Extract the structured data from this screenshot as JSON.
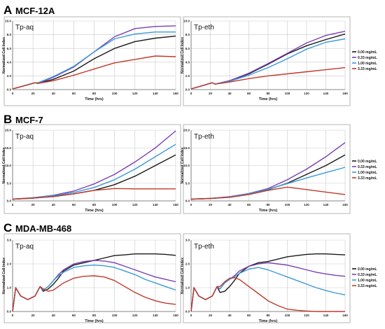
{
  "panels": [
    {
      "letter": "A",
      "cell_line": "MCF-12A"
    },
    {
      "letter": "B",
      "cell_line": "MCF-7"
    },
    {
      "letter": "C",
      "cell_line": "MDA-MB-468"
    }
  ],
  "legend": {
    "entries": [
      {
        "label": "0.00 mg/mL",
        "color": "#1a1a1a"
      },
      {
        "label": "0.33 mg/mL",
        "color": "#7b3fb3"
      },
      {
        "label": "1.00 mg/mL",
        "color": "#3a9ad9"
      },
      {
        "label": "3.33 mg/mL",
        "color": "#c0392b"
      }
    ]
  },
  "chart_data": [
    {
      "type": "line",
      "panel": "A",
      "title": "Tp-aq",
      "xlabel": "Time (hrs)",
      "ylabel": "Normalized Cell Index",
      "xlim": [
        0,
        160
      ],
      "ylim": [
        0,
        10
      ],
      "xticks": [
        0,
        20,
        40,
        60,
        80,
        100,
        120,
        140,
        160
      ],
      "yticks": [
        0,
        2,
        4,
        6,
        8,
        10
      ],
      "ytick_labels": [
        "0.0",
        "2.0",
        "4.0",
        "6.0",
        "8.0",
        "10.0"
      ],
      "grid": true,
      "series": [
        {
          "name": "0.00 mg/mL",
          "x": [
            0,
            10,
            22,
            25,
            40,
            60,
            80,
            100,
            120,
            140,
            160
          ],
          "y": [
            0.1,
            0.5,
            1.0,
            0.9,
            1.5,
            2.7,
            4.5,
            6.0,
            7.0,
            7.5,
            7.8
          ]
        },
        {
          "name": "0.33 mg/mL",
          "x": [
            0,
            10,
            22,
            25,
            40,
            60,
            80,
            100,
            120,
            140,
            160
          ],
          "y": [
            0.1,
            0.5,
            1.0,
            0.9,
            1.8,
            3.3,
            5.5,
            7.7,
            8.9,
            9.2,
            9.3
          ]
        },
        {
          "name": "1.00 mg/mL",
          "x": [
            0,
            10,
            22,
            25,
            40,
            60,
            80,
            100,
            120,
            140,
            160
          ],
          "y": [
            0.1,
            0.5,
            1.0,
            1.0,
            1.9,
            3.4,
            5.5,
            7.4,
            8.1,
            8.4,
            8.4
          ]
        },
        {
          "name": "3.33 mg/mL",
          "x": [
            0,
            10,
            22,
            25,
            40,
            60,
            80,
            100,
            120,
            140,
            160
          ],
          "y": [
            0.1,
            0.5,
            1.0,
            0.9,
            1.3,
            2.1,
            3.0,
            3.9,
            4.4,
            4.9,
            4.8
          ]
        }
      ]
    },
    {
      "type": "line",
      "panel": "A",
      "title": "Tp-eth",
      "xlabel": "Time (hrs)",
      "ylabel": "Normalized Cell Index",
      "xlim": [
        0,
        160
      ],
      "ylim": [
        0,
        10
      ],
      "xticks": [
        0,
        20,
        40,
        60,
        80,
        100,
        120,
        140,
        160
      ],
      "yticks": [
        0,
        2,
        4,
        6,
        8,
        10
      ],
      "ytick_labels": [
        "0.0",
        "2.0",
        "4.0",
        "6.0",
        "8.0",
        "10.0"
      ],
      "grid": true,
      "series": [
        {
          "name": "0.00 mg/mL",
          "x": [
            0,
            10,
            22,
            25,
            40,
            60,
            80,
            100,
            120,
            140,
            160
          ],
          "y": [
            0.1,
            0.5,
            1.0,
            0.8,
            1.3,
            2.3,
            3.7,
            5.2,
            6.4,
            7.3,
            8.1
          ]
        },
        {
          "name": "0.33 mg/mL",
          "x": [
            0,
            10,
            22,
            25,
            40,
            60,
            80,
            100,
            120,
            140,
            160
          ],
          "y": [
            0.1,
            0.5,
            1.0,
            0.8,
            1.3,
            2.4,
            3.8,
            5.3,
            6.8,
            7.9,
            8.5
          ]
        },
        {
          "name": "1.00 mg/mL",
          "x": [
            0,
            10,
            22,
            25,
            40,
            60,
            80,
            100,
            120,
            140,
            160
          ],
          "y": [
            0.1,
            0.5,
            1.0,
            0.8,
            1.2,
            2.1,
            3.2,
            4.5,
            5.9,
            6.9,
            7.4
          ]
        },
        {
          "name": "3.33 mg/mL",
          "x": [
            0,
            10,
            22,
            25,
            40,
            60,
            80,
            100,
            120,
            140,
            160
          ],
          "y": [
            0.1,
            0.5,
            1.0,
            0.8,
            1.1,
            1.6,
            2.0,
            2.3,
            2.6,
            2.9,
            3.2
          ]
        }
      ]
    },
    {
      "type": "line",
      "panel": "B",
      "title": "Tp-aq",
      "xlabel": "Time (hrs)",
      "ylabel": "Normalized Cell Index",
      "xlim": [
        0,
        160
      ],
      "ylim": [
        0,
        20
      ],
      "xticks": [
        0,
        20,
        40,
        60,
        80,
        100,
        120,
        140,
        160
      ],
      "yticks": [
        0,
        5,
        10,
        15,
        20
      ],
      "ytick_labels": [
        "0.0",
        "5.0",
        "10.0",
        "15.0",
        "20.0"
      ],
      "grid": true,
      "series": [
        {
          "name": "0.00 mg/mL",
          "x": [
            0,
            20,
            40,
            60,
            80,
            100,
            120,
            140,
            160
          ],
          "y": [
            0.5,
            0.8,
            1.3,
            2.0,
            3.0,
            4.6,
            7.0,
            10.0,
            13.0
          ]
        },
        {
          "name": "0.33 mg/mL",
          "x": [
            0,
            20,
            40,
            60,
            80,
            100,
            120,
            140,
            160
          ],
          "y": [
            0.5,
            0.9,
            1.6,
            2.8,
            4.8,
            7.5,
            11.0,
            15.0,
            19.8
          ]
        },
        {
          "name": "1.00 mg/mL",
          "x": [
            0,
            20,
            40,
            60,
            80,
            100,
            120,
            140,
            160
          ],
          "y": [
            0.5,
            0.9,
            1.5,
            2.4,
            3.8,
            6.0,
            9.0,
            12.5,
            16.0
          ]
        },
        {
          "name": "3.33 mg/mL",
          "x": [
            0,
            20,
            40,
            60,
            80,
            100,
            120,
            140,
            160
          ],
          "y": [
            0.5,
            0.8,
            1.2,
            2.0,
            3.0,
            3.5,
            3.4,
            3.4,
            3.4
          ]
        }
      ]
    },
    {
      "type": "line",
      "panel": "B",
      "title": "Tp-eth",
      "xlabel": "Time (hrs)",
      "ylabel": "Normalized Cell Index",
      "xlim": [
        0,
        160
      ],
      "ylim": [
        0,
        20
      ],
      "xticks": [
        0,
        20,
        40,
        60,
        80,
        100,
        120,
        140,
        160
      ],
      "yticks": [
        0,
        5,
        10,
        15,
        20
      ],
      "ytick_labels": [
        "0.0",
        "5.0",
        "10.0",
        "15.0",
        "20.0"
      ],
      "grid": true,
      "series": [
        {
          "name": "0.00 mg/mL",
          "x": [
            0,
            20,
            40,
            60,
            80,
            100,
            120,
            140,
            160
          ],
          "y": [
            0.5,
            0.7,
            1.1,
            1.9,
            3.2,
            5.0,
            7.5,
            10.0,
            13.0
          ]
        },
        {
          "name": "0.33 mg/mL",
          "x": [
            0,
            20,
            40,
            60,
            80,
            100,
            120,
            140,
            160
          ],
          "y": [
            0.5,
            0.7,
            1.2,
            2.1,
            3.5,
            6.0,
            9.0,
            12.5,
            16.5
          ]
        },
        {
          "name": "1.00 mg/mL",
          "x": [
            0,
            20,
            40,
            60,
            80,
            100,
            120,
            140,
            160
          ],
          "y": [
            0.5,
            0.7,
            1.1,
            2.0,
            3.3,
            4.9,
            6.5,
            8.0,
            9.5
          ]
        },
        {
          "name": "3.33 mg/mL",
          "x": [
            0,
            20,
            40,
            60,
            80,
            100,
            120,
            140,
            160
          ],
          "y": [
            0.5,
            0.7,
            1.0,
            1.8,
            3.0,
            3.9,
            3.2,
            2.5,
            1.8
          ]
        }
      ]
    },
    {
      "type": "line",
      "panel": "C",
      "title": "Tp-aq",
      "xlabel": "Time (hrs)",
      "ylabel": "Normalized Cell Index",
      "xlim": [
        0,
        160
      ],
      "ylim": [
        0,
        3
      ],
      "xticks": [
        0,
        20,
        40,
        60,
        80,
        100,
        120,
        140,
        160
      ],
      "yticks": [
        0,
        1,
        2,
        3
      ],
      "ytick_labels": [
        "0.0",
        "1.0",
        "2.0",
        "3.0"
      ],
      "grid": true,
      "series": [
        {
          "name": "0.00 mg/mL",
          "x": [
            0,
            3,
            8,
            15,
            22,
            27,
            30,
            35,
            40,
            45,
            50,
            60,
            70,
            80,
            90,
            100,
            110,
            120,
            130,
            140,
            150,
            160
          ],
          "y": [
            0.0,
            1.0,
            0.65,
            0.5,
            0.65,
            1.05,
            0.85,
            0.95,
            1.15,
            1.4,
            1.7,
            1.95,
            2.05,
            2.15,
            2.25,
            2.35,
            2.38,
            2.42,
            2.42,
            2.42,
            2.4,
            2.36
          ]
        },
        {
          "name": "0.33 mg/mL",
          "x": [
            0,
            3,
            8,
            15,
            22,
            27,
            30,
            35,
            40,
            45,
            50,
            60,
            70,
            80,
            90,
            100,
            110,
            120,
            130,
            140,
            150,
            160
          ],
          "y": [
            0.0,
            1.0,
            0.65,
            0.5,
            0.65,
            1.05,
            0.9,
            1.05,
            1.3,
            1.55,
            1.75,
            2.0,
            2.1,
            2.15,
            2.12,
            2.05,
            1.9,
            1.75,
            1.6,
            1.45,
            1.35,
            1.25
          ]
        },
        {
          "name": "1.00 mg/mL",
          "x": [
            0,
            3,
            8,
            15,
            22,
            27,
            30,
            35,
            40,
            45,
            50,
            60,
            70,
            80,
            90,
            100,
            110,
            120,
            130,
            140,
            150,
            160
          ],
          "y": [
            0.0,
            1.0,
            0.65,
            0.5,
            0.65,
            1.05,
            0.9,
            1.05,
            1.3,
            1.5,
            1.65,
            1.85,
            1.92,
            1.95,
            1.92,
            1.85,
            1.7,
            1.55,
            1.35,
            1.2,
            1.05,
            0.9
          ]
        },
        {
          "name": "3.33 mg/mL",
          "x": [
            0,
            3,
            8,
            15,
            22,
            27,
            30,
            35,
            40,
            45,
            50,
            60,
            70,
            80,
            90,
            100,
            110,
            120,
            130,
            140,
            150,
            160
          ],
          "y": [
            0.0,
            1.0,
            0.65,
            0.5,
            0.65,
            1.05,
            0.95,
            0.85,
            0.9,
            1.05,
            1.2,
            1.4,
            1.48,
            1.5,
            1.45,
            1.3,
            1.05,
            0.8,
            0.6,
            0.45,
            0.35,
            0.3
          ]
        }
      ]
    },
    {
      "type": "line",
      "panel": "C",
      "title": "Tp-eth",
      "xlabel": "Time (hrs)",
      "ylabel": "Normalized Cell Index",
      "xlim": [
        0,
        160
      ],
      "ylim": [
        0,
        3
      ],
      "xticks": [
        0,
        20,
        40,
        60,
        80,
        100,
        120,
        140,
        160
      ],
      "yticks": [
        0,
        1,
        2,
        3
      ],
      "ytick_labels": [
        "0.0",
        "1.0",
        "2.0",
        "3.0"
      ],
      "grid": true,
      "series": [
        {
          "name": "0.00 mg/mL",
          "x": [
            0,
            3,
            8,
            15,
            22,
            27,
            30,
            35,
            40,
            45,
            50,
            60,
            70,
            80,
            90,
            100,
            110,
            120,
            130,
            140,
            150,
            160
          ],
          "y": [
            0.0,
            1.0,
            0.65,
            0.5,
            0.65,
            1.05,
            0.8,
            0.85,
            1.05,
            1.3,
            1.6,
            1.9,
            2.05,
            2.1,
            2.2,
            2.3,
            2.35,
            2.4,
            2.42,
            2.42,
            2.4,
            2.38
          ]
        },
        {
          "name": "0.33 mg/mL",
          "x": [
            0,
            3,
            8,
            15,
            22,
            27,
            30,
            35,
            40,
            45,
            50,
            60,
            70,
            80,
            90,
            100,
            110,
            120,
            130,
            140,
            150,
            160
          ],
          "y": [
            0.0,
            1.0,
            0.65,
            0.5,
            0.65,
            1.05,
            0.95,
            1.2,
            1.35,
            1.5,
            1.7,
            1.9,
            2.0,
            2.05,
            2.0,
            1.95,
            1.85,
            1.75,
            1.65,
            1.58,
            1.52,
            1.48
          ]
        },
        {
          "name": "1.00 mg/mL",
          "x": [
            0,
            3,
            8,
            15,
            22,
            27,
            30,
            35,
            40,
            45,
            50,
            60,
            70,
            80,
            90,
            100,
            110,
            120,
            130,
            140,
            150,
            160
          ],
          "y": [
            0.0,
            1.0,
            0.65,
            0.5,
            0.65,
            1.05,
            0.95,
            1.2,
            1.35,
            1.45,
            1.6,
            1.78,
            1.85,
            1.75,
            1.6,
            1.45,
            1.3,
            1.15,
            1.0,
            0.88,
            0.78,
            0.7
          ]
        },
        {
          "name": "3.33 mg/mL",
          "x": [
            0,
            3,
            8,
            15,
            22,
            27,
            30,
            35,
            40,
            45,
            50,
            60,
            70,
            80,
            90,
            100,
            110,
            120,
            130,
            140,
            150,
            160
          ],
          "y": [
            0.0,
            1.0,
            0.65,
            0.5,
            0.65,
            1.05,
            1.05,
            1.25,
            1.4,
            1.42,
            1.35,
            1.05,
            0.75,
            0.45,
            0.25,
            0.1,
            0.05,
            0.02,
            0.0,
            0.0,
            0.0,
            0.0
          ]
        }
      ]
    }
  ]
}
